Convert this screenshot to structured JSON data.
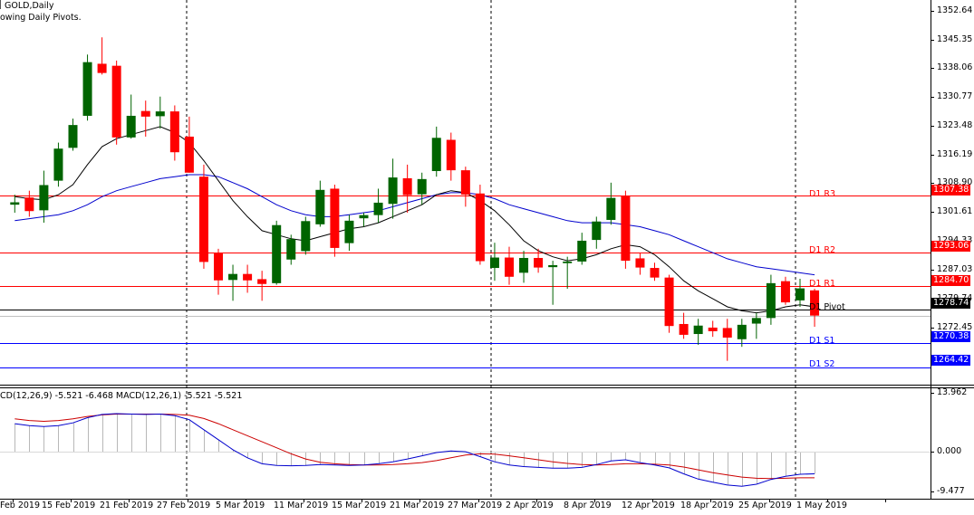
{
  "window": {
    "symbol_title": "GOLD,Daily",
    "indicator_note": "owing Daily Pivots."
  },
  "macd": {
    "label": "CD(12,26,9) -5.521 -6.468 MACD(12,26,1) -5.521 -5.521",
    "axis_labels": [
      "13.962",
      "0.000",
      "-9.477"
    ]
  },
  "price_axis": {
    "labels": [
      "1352.64",
      "1345.35",
      "1338.06",
      "1330.77",
      "1323.48",
      "1316.19",
      "1308.90",
      "1301.61",
      "1294.33",
      "1287.03",
      "1279.74",
      "1272.45"
    ]
  },
  "pivots": [
    {
      "label": "D1  R3",
      "price_tag": "1307.38",
      "value": 1307.38,
      "color": "#ff0000"
    },
    {
      "label": "D1  R2",
      "price_tag": "1293.06",
      "value": 1293.06,
      "color": "#ff0000"
    },
    {
      "label": "D1  R1",
      "price_tag": "1284.70",
      "value": 1284.7,
      "color": "#ff0000"
    },
    {
      "label": "D1  Pivot",
      "price_tag": "1278.74",
      "value": 1278.74,
      "color": "#000000"
    },
    {
      "label": "D1  S1",
      "price_tag": "1270.38",
      "value": 1270.38,
      "color": "#0000ff"
    },
    {
      "label": "D1  S2",
      "price_tag": "1264.42",
      "value": 1264.42,
      "color": "#0000ff"
    }
  ],
  "time_axis": {
    "labels": [
      "Feb 2019",
      "15 Feb 2019",
      "21 Feb 2019",
      "27 Feb 2019",
      "5 Mar 2019",
      "11 Mar 2019",
      "15 Mar 2019",
      "21 Mar 2019",
      "27 Mar 2019",
      "2 Apr 2019",
      "8 Apr 2019",
      "12 Apr 2019",
      "18 Apr 2019",
      "25 Apr 2019",
      "1 May 2019"
    ]
  },
  "colors": {
    "bull": "#006400",
    "bear": "#ff0000",
    "ma_fast": "#000000",
    "ma_slow": "#0000cd",
    "macd_line": "#0000cd",
    "signal_line": "#cc0000",
    "background": "#ffffff"
  },
  "chart_data": {
    "type": "candlestick",
    "symbol": "GOLD",
    "timeframe": "Daily",
    "ylim": [
      1260.5,
      1355.9
    ],
    "candles": [
      {
        "o": 1305.0,
        "h": 1307.5,
        "l": 1303.0,
        "c": 1305.6
      },
      {
        "o": 1306.8,
        "h": 1308.5,
        "l": 1302.0,
        "c": 1303.4
      },
      {
        "o": 1303.6,
        "h": 1313.5,
        "l": 1300.5,
        "c": 1309.9
      },
      {
        "o": 1311.0,
        "h": 1320.5,
        "l": 1309.5,
        "c": 1319.0
      },
      {
        "o": 1319.2,
        "h": 1326.5,
        "l": 1318.5,
        "c": 1324.9
      },
      {
        "o": 1327.2,
        "h": 1342.5,
        "l": 1326.0,
        "c": 1340.6
      },
      {
        "o": 1340.2,
        "h": 1346.8,
        "l": 1337.5,
        "c": 1337.9
      },
      {
        "o": 1339.7,
        "h": 1341.0,
        "l": 1320.0,
        "c": 1321.8
      },
      {
        "o": 1321.8,
        "h": 1332.5,
        "l": 1321.5,
        "c": 1327.2
      },
      {
        "o": 1328.4,
        "h": 1331.0,
        "l": 1322.0,
        "c": 1327.0
      },
      {
        "o": 1327.1,
        "h": 1332.0,
        "l": 1324.0,
        "c": 1328.3
      },
      {
        "o": 1328.3,
        "h": 1329.8,
        "l": 1316.0,
        "c": 1318.1
      },
      {
        "o": 1322.0,
        "h": 1327.0,
        "l": 1313.0,
        "c": 1313.0
      },
      {
        "o": 1312.0,
        "h": 1315.0,
        "l": 1289.0,
        "c": 1290.7
      },
      {
        "o": 1293.0,
        "h": 1294.0,
        "l": 1282.5,
        "c": 1286.1
      },
      {
        "o": 1286.2,
        "h": 1290.0,
        "l": 1281.0,
        "c": 1287.7
      },
      {
        "o": 1287.7,
        "h": 1290.0,
        "l": 1283.0,
        "c": 1286.1
      },
      {
        "o": 1286.4,
        "h": 1288.5,
        "l": 1281.0,
        "c": 1285.2
      },
      {
        "o": 1285.4,
        "h": 1301.0,
        "l": 1285.0,
        "c": 1299.9
      },
      {
        "o": 1291.3,
        "h": 1297.5,
        "l": 1290.0,
        "c": 1296.4
      },
      {
        "o": 1293.4,
        "h": 1302.0,
        "l": 1292.5,
        "c": 1300.9
      },
      {
        "o": 1300.1,
        "h": 1311.0,
        "l": 1299.5,
        "c": 1308.7
      },
      {
        "o": 1309.0,
        "h": 1310.0,
        "l": 1292.0,
        "c": 1294.2
      },
      {
        "o": 1295.4,
        "h": 1302.5,
        "l": 1293.5,
        "c": 1301.0
      },
      {
        "o": 1301.6,
        "h": 1303.0,
        "l": 1299.5,
        "c": 1302.4
      },
      {
        "o": 1302.4,
        "h": 1309.0,
        "l": 1300.5,
        "c": 1305.5
      },
      {
        "o": 1305.2,
        "h": 1316.5,
        "l": 1301.5,
        "c": 1311.8
      },
      {
        "o": 1311.6,
        "h": 1315.0,
        "l": 1303.0,
        "c": 1307.4
      },
      {
        "o": 1307.6,
        "h": 1313.0,
        "l": 1305.0,
        "c": 1311.4
      },
      {
        "o": 1313.4,
        "h": 1324.5,
        "l": 1312.0,
        "c": 1321.7
      },
      {
        "o": 1321.2,
        "h": 1323.0,
        "l": 1311.0,
        "c": 1313.6
      },
      {
        "o": 1313.6,
        "h": 1314.5,
        "l": 1304.5,
        "c": 1307.5
      },
      {
        "o": 1307.8,
        "h": 1310.0,
        "l": 1290.0,
        "c": 1290.9
      },
      {
        "o": 1289.2,
        "h": 1295.5,
        "l": 1286.0,
        "c": 1291.8
      },
      {
        "o": 1291.8,
        "h": 1294.5,
        "l": 1285.0,
        "c": 1287.0
      },
      {
        "o": 1288.0,
        "h": 1293.5,
        "l": 1285.5,
        "c": 1291.7
      },
      {
        "o": 1291.7,
        "h": 1294.0,
        "l": 1288.0,
        "c": 1289.3
      },
      {
        "o": 1289.4,
        "h": 1291.0,
        "l": 1280.0,
        "c": 1289.9
      },
      {
        "o": 1290.4,
        "h": 1292.0,
        "l": 1284.0,
        "c": 1290.8
      },
      {
        "o": 1290.8,
        "h": 1298.0,
        "l": 1290.0,
        "c": 1296.0
      },
      {
        "o": 1296.2,
        "h": 1302.0,
        "l": 1294.0,
        "c": 1300.8
      },
      {
        "o": 1301.2,
        "h": 1310.5,
        "l": 1300.0,
        "c": 1306.7
      },
      {
        "o": 1307.2,
        "h": 1308.5,
        "l": 1289.0,
        "c": 1291.0
      },
      {
        "o": 1291.6,
        "h": 1293.0,
        "l": 1287.5,
        "c": 1289.3
      },
      {
        "o": 1289.2,
        "h": 1290.5,
        "l": 1286.0,
        "c": 1286.8
      },
      {
        "o": 1286.8,
        "h": 1287.5,
        "l": 1273.0,
        "c": 1274.7
      },
      {
        "o": 1275.2,
        "h": 1278.0,
        "l": 1271.5,
        "c": 1272.5
      },
      {
        "o": 1272.7,
        "h": 1276.5,
        "l": 1270.0,
        "c": 1274.8
      },
      {
        "o": 1274.3,
        "h": 1276.0,
        "l": 1272.0,
        "c": 1273.4
      },
      {
        "o": 1274.2,
        "h": 1276.5,
        "l": 1266.0,
        "c": 1271.8
      },
      {
        "o": 1271.4,
        "h": 1276.5,
        "l": 1269.5,
        "c": 1275.0
      },
      {
        "o": 1275.3,
        "h": 1278.0,
        "l": 1271.5,
        "c": 1276.7
      },
      {
        "o": 1276.7,
        "h": 1287.5,
        "l": 1275.0,
        "c": 1285.4
      },
      {
        "o": 1285.9,
        "h": 1287.0,
        "l": 1280.0,
        "c": 1280.6
      },
      {
        "o": 1281.1,
        "h": 1286.5,
        "l": 1279.5,
        "c": 1284.1
      },
      {
        "o": 1283.6,
        "h": 1284.0,
        "l": 1274.5,
        "c": 1277.3
      }
    ],
    "ma_fast": [
      1307.0,
      1306.5,
      1306.2,
      1307.5,
      1310.0,
      1315.0,
      1319.5,
      1321.5,
      1322.5,
      1323.5,
      1324.5,
      1323.0,
      1320.5,
      1316.0,
      1311.0,
      1306.0,
      1302.0,
      1298.5,
      1297.5,
      1296.5,
      1296.0,
      1297.0,
      1298.0,
      1299.0,
      1299.5,
      1300.5,
      1302.0,
      1303.5,
      1305.0,
      1307.5,
      1308.5,
      1308.0,
      1306.0,
      1303.5,
      1300.0,
      1296.0,
      1293.5,
      1292.0,
      1291.0,
      1291.5,
      1292.5,
      1294.0,
      1295.0,
      1294.5,
      1292.5,
      1289.5,
      1286.0,
      1283.5,
      1281.5,
      1279.5,
      1278.5,
      1278.0,
      1278.5,
      1279.5,
      1280.0,
      1279.5
    ],
    "ma_slow": [
      1301.0,
      1301.5,
      1302.0,
      1302.5,
      1303.5,
      1305.0,
      1307.0,
      1308.5,
      1309.5,
      1310.5,
      1311.5,
      1312.0,
      1312.5,
      1312.5,
      1312.0,
      1310.5,
      1309.0,
      1307.0,
      1305.0,
      1303.5,
      1302.5,
      1302.0,
      1302.0,
      1302.5,
      1303.0,
      1303.5,
      1304.5,
      1305.5,
      1306.5,
      1307.5,
      1308.0,
      1308.0,
      1307.5,
      1306.5,
      1305.0,
      1304.0,
      1303.0,
      1302.0,
      1301.0,
      1300.5,
      1300.5,
      1300.5,
      1300.0,
      1299.5,
      1298.5,
      1297.5,
      1296.0,
      1294.5,
      1293.0,
      1291.5,
      1290.5,
      1289.5,
      1289.0,
      1288.5,
      1288.0,
      1287.5
    ],
    "macd": {
      "ylim": [
        -10.8,
        15.6
      ],
      "macd_line": [
        7.0,
        6.5,
        6.3,
        6.5,
        7.2,
        8.5,
        9.3,
        9.5,
        9.4,
        9.3,
        9.4,
        9.0,
        8.0,
        5.5,
        3.0,
        0.5,
        -1.5,
        -3.0,
        -3.4,
        -3.5,
        -3.4,
        -3.2,
        -3.3,
        -3.4,
        -3.3,
        -3.0,
        -2.5,
        -1.8,
        -1.0,
        -0.2,
        0.2,
        0.0,
        -1.2,
        -2.5,
        -3.3,
        -3.7,
        -3.9,
        -4.1,
        -4.1,
        -3.9,
        -3.2,
        -2.3,
        -2.0,
        -2.7,
        -3.3,
        -4.0,
        -5.5,
        -6.8,
        -7.6,
        -8.3,
        -8.6,
        -8.1,
        -6.9,
        -6.1,
        -5.6,
        -5.5
      ],
      "signal_line": [
        8.2,
        7.8,
        7.6,
        7.8,
        8.2,
        8.8,
        9.2,
        9.4,
        9.4,
        9.4,
        9.4,
        9.3,
        9.1,
        8.3,
        7.0,
        5.5,
        4.0,
        2.5,
        1.0,
        -0.5,
        -1.8,
        -2.6,
        -3.0,
        -3.2,
        -3.3,
        -3.3,
        -3.2,
        -3.0,
        -2.7,
        -2.2,
        -1.5,
        -0.8,
        -0.5,
        -0.6,
        -1.0,
        -1.5,
        -2.0,
        -2.5,
        -2.9,
        -3.2,
        -3.3,
        -3.2,
        -3.0,
        -3.0,
        -3.1,
        -3.3,
        -3.8,
        -4.5,
        -5.2,
        -5.8,
        -6.3,
        -6.6,
        -6.7,
        -6.6,
        -6.5,
        -6.5
      ]
    }
  }
}
